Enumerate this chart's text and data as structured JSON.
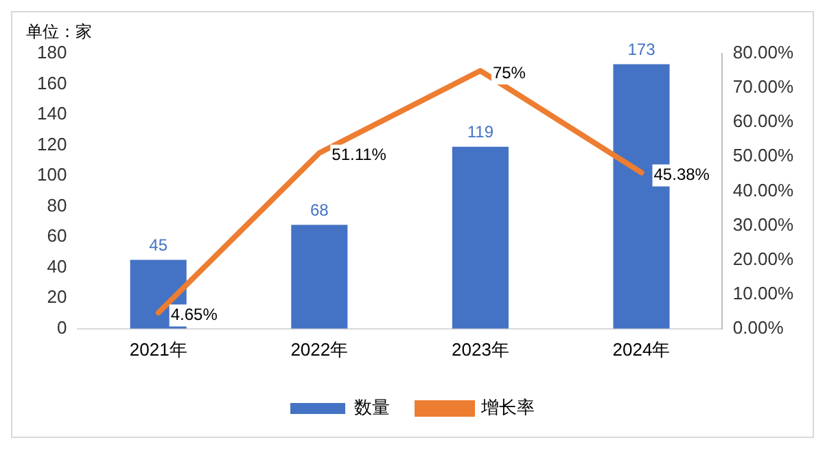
{
  "chart_data": {
    "type": "bar",
    "annotations": [
      "单位：家"
    ],
    "categories": [
      "2021年",
      "2022年",
      "2023年",
      "2024年"
    ],
    "series": [
      {
        "name": "数量",
        "color": "#4472c4",
        "values": [
          45,
          68,
          119,
          173
        ]
      },
      {
        "name": "增长率",
        "type": "line",
        "axis": "y2",
        "color": "#ed7d31",
        "values": [
          4.65,
          51.11,
          75,
          45.38
        ],
        "value_labels": [
          "4.65%",
          "51.11%",
          "75%",
          "45.38%"
        ]
      }
    ],
    "ylim": [
      0,
      180
    ],
    "yticks": [
      0,
      20,
      40,
      60,
      80,
      100,
      120,
      140,
      160,
      180
    ],
    "y2lim": [
      0,
      80
    ],
    "y2ticks": [
      {
        "value": 0,
        "label": "0.00%"
      },
      {
        "value": 10,
        "label": "10.00%"
      },
      {
        "value": 20,
        "label": "20.00%"
      },
      {
        "value": 30,
        "label": "30.00%"
      },
      {
        "value": 40,
        "label": "40.00%"
      },
      {
        "value": 50,
        "label": "50.00%"
      },
      {
        "value": 60,
        "label": "60.00%"
      },
      {
        "value": 70,
        "label": "70.00%"
      },
      {
        "value": 80,
        "label": "80.00%"
      }
    ],
    "data_labels": true,
    "grid": false,
    "legend": "bottom",
    "marker": "none",
    "line_style": "solid"
  }
}
